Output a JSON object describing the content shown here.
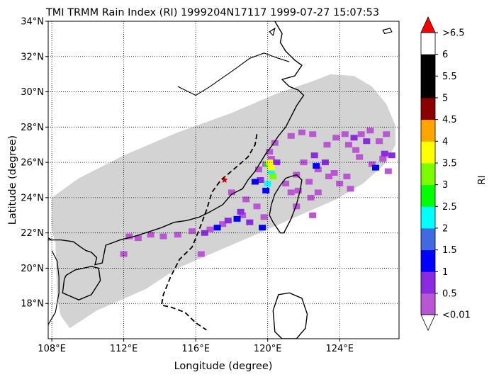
{
  "chart_data": {
    "type": "heatmap",
    "title": "TMI TRMM Rain Index (RI) 1999204N17117 1999-07-27 15:07:53",
    "xlabel": "Longitude (degree)",
    "ylabel": "Latitude (degree)",
    "xlim": [
      107.8,
      127.3
    ],
    "ylim": [
      16.0,
      34.0
    ],
    "grid": true,
    "x_ticks": [
      {
        "value": 108,
        "label": "108°E"
      },
      {
        "value": 112,
        "label": "112°E"
      },
      {
        "value": 116,
        "label": "116°E"
      },
      {
        "value": 120,
        "label": "120°E"
      },
      {
        "value": 124,
        "label": "124°E"
      }
    ],
    "y_ticks": [
      {
        "value": 18,
        "label": "18°N"
      },
      {
        "value": 20,
        "label": "20°N"
      },
      {
        "value": 22,
        "label": "22°N"
      },
      {
        "value": 24,
        "label": "24°N"
      },
      {
        "value": 26,
        "label": "26°N"
      },
      {
        "value": 28,
        "label": "28°N"
      },
      {
        "value": 30,
        "label": "30°N"
      },
      {
        "value": 32,
        "label": "32°N"
      },
      {
        "value": 34,
        "label": "34°N"
      }
    ],
    "swath_color": "#d3d3d3",
    "swath": [
      [
        108.0,
        24.0
      ],
      [
        109.5,
        25.1
      ],
      [
        112.0,
        26.4
      ],
      [
        115.0,
        27.7
      ],
      [
        118.0,
        28.8
      ],
      [
        120.5,
        29.9
      ],
      [
        122.5,
        30.6
      ],
      [
        123.5,
        31.0
      ],
      [
        124.8,
        30.9
      ],
      [
        125.8,
        30.3
      ],
      [
        126.6,
        29.3
      ],
      [
        127.1,
        28.1
      ],
      [
        127.1,
        27.0
      ],
      [
        126.5,
        25.9
      ],
      [
        125.3,
        24.8
      ],
      [
        123.8,
        23.9
      ],
      [
        122.0,
        23.1
      ],
      [
        120.0,
        22.2
      ],
      [
        117.5,
        21.1
      ],
      [
        115.0,
        20.0
      ],
      [
        113.2,
        18.8
      ],
      [
        110.5,
        17.6
      ],
      [
        109.0,
        16.6
      ],
      [
        108.5,
        17.3
      ],
      [
        108.3,
        18.3
      ],
      [
        108.2,
        21.4
      ],
      [
        108.0,
        22.2
      ]
    ],
    "storm_center": {
      "lon": 117.6,
      "lat": 25.0,
      "color": "#cc0000"
    },
    "track": [
      [
        119.4,
        27.6
      ],
      [
        119.3,
        27.0
      ],
      [
        118.9,
        26.3
      ],
      [
        118.1,
        25.6
      ],
      [
        117.4,
        25.0
      ],
      [
        116.9,
        24.3
      ],
      [
        116.6,
        23.3
      ],
      [
        116.2,
        22.2
      ],
      [
        115.8,
        21.2
      ],
      [
        115.1,
        20.5
      ],
      [
        114.6,
        19.5
      ],
      [
        114.2,
        18.5
      ],
      [
        114.1,
        17.9
      ],
      [
        114.6,
        17.8
      ],
      [
        115.4,
        17.5
      ],
      [
        116.0,
        16.9
      ],
      [
        116.6,
        16.5
      ]
    ],
    "rain_cells": [
      {
        "lon": 119.5,
        "lat": 25.6,
        "ri": 0.3
      },
      {
        "lon": 119.9,
        "lat": 25.9,
        "ri": 0.3
      },
      {
        "lon": 120.2,
        "lat": 26.2,
        "ri": 0.3
      },
      {
        "lon": 120.1,
        "lat": 26.6,
        "ri": 0.3
      },
      {
        "lon": 120.4,
        "lat": 27.1,
        "ri": 0.3
      },
      {
        "lon": 120.5,
        "lat": 26.0,
        "ri": 0.8
      },
      {
        "lon": 119.6,
        "lat": 25.0,
        "ri": 0.8
      },
      {
        "lon": 119.3,
        "lat": 24.9,
        "ri": 1.3
      },
      {
        "lon": 119.9,
        "lat": 24.4,
        "ri": 1.3
      },
      {
        "lon": 120.2,
        "lat": 25.5,
        "ri": 2.2
      },
      {
        "lon": 120.0,
        "lat": 24.8,
        "ri": 2.2
      },
      {
        "lon": 120.0,
        "lat": 25.9,
        "ri": 2.8
      },
      {
        "lon": 120.3,
        "lat": 25.2,
        "ri": 3.3
      },
      {
        "lon": 120.1,
        "lat": 26.0,
        "ri": 3.7
      },
      {
        "lon": 120.2,
        "lat": 25.7,
        "ri": 3.7
      },
      {
        "lon": 121.0,
        "lat": 24.8,
        "ri": 0.3
      },
      {
        "lon": 121.6,
        "lat": 25.3,
        "ri": 0.3
      },
      {
        "lon": 121.3,
        "lat": 24.3,
        "ri": 0.3
      },
      {
        "lon": 118.0,
        "lat": 24.3,
        "ri": 0.3
      },
      {
        "lon": 118.8,
        "lat": 23.9,
        "ri": 0.3
      },
      {
        "lon": 119.4,
        "lat": 23.5,
        "ri": 0.3
      },
      {
        "lon": 118.6,
        "lat": 23.0,
        "ri": 0.3
      },
      {
        "lon": 119.8,
        "lat": 22.9,
        "ri": 0.3
      },
      {
        "lon": 117.5,
        "lat": 22.5,
        "ri": 0.3
      },
      {
        "lon": 116.8,
        "lat": 22.2,
        "ri": 0.3
      },
      {
        "lon": 115.8,
        "lat": 22.1,
        "ri": 0.3
      },
      {
        "lon": 115.0,
        "lat": 21.9,
        "ri": 0.3
      },
      {
        "lon": 114.2,
        "lat": 21.8,
        "ri": 0.3
      },
      {
        "lon": 113.5,
        "lat": 21.9,
        "ri": 0.3
      },
      {
        "lon": 112.8,
        "lat": 21.7,
        "ri": 0.3
      },
      {
        "lon": 112.3,
        "lat": 21.8,
        "ri": 0.3
      },
      {
        "lon": 112.0,
        "lat": 20.8,
        "ri": 0.3
      },
      {
        "lon": 116.3,
        "lat": 20.8,
        "ri": 0.3
      },
      {
        "lon": 117.8,
        "lat": 22.7,
        "ri": 0.8
      },
      {
        "lon": 116.5,
        "lat": 22.0,
        "ri": 0.8
      },
      {
        "lon": 118.5,
        "lat": 23.2,
        "ri": 0.8
      },
      {
        "lon": 119.0,
        "lat": 22.6,
        "ri": 0.8
      },
      {
        "lon": 117.2,
        "lat": 22.3,
        "ri": 1.3
      },
      {
        "lon": 118.3,
        "lat": 22.8,
        "ri": 1.3
      },
      {
        "lon": 119.7,
        "lat": 22.3,
        "ri": 1.3
      },
      {
        "lon": 121.7,
        "lat": 24.4,
        "ri": 0.3
      },
      {
        "lon": 122.3,
        "lat": 24.9,
        "ri": 0.3
      },
      {
        "lon": 122.8,
        "lat": 24.3,
        "ri": 0.3
      },
      {
        "lon": 122.4,
        "lat": 24.0,
        "ri": 0.3
      },
      {
        "lon": 121.6,
        "lat": 23.5,
        "ri": 0.3
      },
      {
        "lon": 122.5,
        "lat": 23.0,
        "ri": 0.3
      },
      {
        "lon": 122.8,
        "lat": 25.6,
        "ri": 0.3
      },
      {
        "lon": 123.4,
        "lat": 25.2,
        "ri": 0.3
      },
      {
        "lon": 124.0,
        "lat": 24.8,
        "ri": 0.3
      },
      {
        "lon": 122.0,
        "lat": 26.0,
        "ri": 0.3
      },
      {
        "lon": 123.7,
        "lat": 25.4,
        "ri": 0.3
      },
      {
        "lon": 124.6,
        "lat": 24.5,
        "ri": 0.3
      },
      {
        "lon": 122.6,
        "lat": 26.4,
        "ri": 0.8
      },
      {
        "lon": 123.2,
        "lat": 26.0,
        "ri": 0.8
      },
      {
        "lon": 122.7,
        "lat": 25.8,
        "ri": 1.3
      },
      {
        "lon": 121.3,
        "lat": 27.5,
        "ri": 0.3
      },
      {
        "lon": 121.9,
        "lat": 27.7,
        "ri": 0.3
      },
      {
        "lon": 122.5,
        "lat": 27.6,
        "ri": 0.3
      },
      {
        "lon": 123.3,
        "lat": 27.0,
        "ri": 0.3
      },
      {
        "lon": 123.8,
        "lat": 27.4,
        "ri": 0.3
      },
      {
        "lon": 124.3,
        "lat": 27.6,
        "ri": 0.3
      },
      {
        "lon": 124.5,
        "lat": 27.0,
        "ri": 0.3
      },
      {
        "lon": 124.9,
        "lat": 26.7,
        "ri": 0.3
      },
      {
        "lon": 125.2,
        "lat": 27.6,
        "ri": 0.3
      },
      {
        "lon": 125.7,
        "lat": 27.8,
        "ri": 0.3
      },
      {
        "lon": 126.2,
        "lat": 27.2,
        "ri": 0.3
      },
      {
        "lon": 126.6,
        "lat": 27.6,
        "ri": 0.3
      },
      {
        "lon": 126.4,
        "lat": 26.2,
        "ri": 0.3
      },
      {
        "lon": 125.8,
        "lat": 25.9,
        "ri": 0.3
      },
      {
        "lon": 126.7,
        "lat": 25.5,
        "ri": 0.3
      },
      {
        "lon": 124.4,
        "lat": 25.2,
        "ri": 0.3
      },
      {
        "lon": 125.1,
        "lat": 26.3,
        "ri": 0.3
      },
      {
        "lon": 124.8,
        "lat": 27.4,
        "ri": 0.8
      },
      {
        "lon": 125.5,
        "lat": 27.2,
        "ri": 0.8
      },
      {
        "lon": 126.5,
        "lat": 26.5,
        "ri": 0.8
      },
      {
        "lon": 126.0,
        "lat": 25.7,
        "ri": 1.3
      },
      {
        "lon": 126.9,
        "lat": 26.4,
        "ri": 0.8
      }
    ],
    "colorbar": {
      "label": "RI",
      "colors": [
        "#ba55d3",
        "#8a2be2",
        "#0000ff",
        "#4169e1",
        "#00ffff",
        "#00ff00",
        "#7cfc00",
        "#ffff00",
        "#ffa500",
        "#8b0000",
        "#000000",
        "#000000"
      ],
      "over_color": "#ff0000",
      "under_color": "#ffffff",
      "tick_values": [
        0.01,
        0.5,
        1,
        1.5,
        2,
        2.5,
        3,
        3.5,
        4,
        4.5,
        5,
        5.5,
        6,
        6.5
      ],
      "tick_labels": [
        "<0.01",
        "0.5",
        "1",
        "1.5",
        "2",
        "2.5",
        "3",
        "3.5",
        "4",
        "4.5",
        "5",
        "5.5",
        "6",
        ">6.5"
      ]
    },
    "map": {
      "coastline": [
        [
          107.8,
          21.6
        ],
        [
          108.5,
          21.6
        ],
        [
          109.2,
          21.5
        ],
        [
          109.6,
          21.2
        ],
        [
          109.9,
          21.0
        ],
        [
          110.2,
          20.9
        ],
        [
          110.5,
          20.6
        ],
        [
          110.4,
          20.2
        ],
        [
          110.8,
          20.3
        ],
        [
          111.0,
          21.3
        ],
        [
          111.8,
          21.6
        ],
        [
          112.6,
          21.8
        ],
        [
          113.5,
          22.1
        ],
        [
          114.1,
          22.3
        ],
        [
          114.8,
          22.6
        ],
        [
          115.5,
          22.7
        ],
        [
          116.2,
          22.9
        ],
        [
          116.8,
          23.2
        ],
        [
          117.5,
          23.6
        ],
        [
          118.0,
          24.2
        ],
        [
          118.6,
          24.5
        ],
        [
          118.9,
          25.0
        ],
        [
          119.3,
          25.5
        ],
        [
          119.6,
          26.0
        ],
        [
          119.9,
          26.5
        ],
        [
          120.2,
          26.9
        ],
        [
          120.6,
          27.5
        ],
        [
          121.0,
          28.0
        ],
        [
          121.3,
          28.6
        ],
        [
          121.6,
          29.2
        ],
        [
          122.0,
          29.8
        ],
        [
          121.7,
          30.1
        ],
        [
          121.2,
          30.3
        ],
        [
          120.8,
          30.7
        ],
        [
          121.5,
          30.9
        ],
        [
          121.9,
          31.5
        ],
        [
          121.5,
          31.8
        ],
        [
          121.0,
          32.3
        ],
        [
          120.7,
          32.8
        ],
        [
          120.8,
          33.3
        ],
        [
          120.4,
          34.0
        ]
      ],
      "yangtze": [
        [
          115.0,
          30.3
        ],
        [
          116.0,
          29.8
        ],
        [
          116.8,
          30.3
        ],
        [
          117.5,
          30.8
        ],
        [
          118.2,
          31.3
        ],
        [
          119.0,
          31.9
        ],
        [
          119.8,
          32.2
        ],
        [
          120.6,
          31.9
        ],
        [
          121.2,
          31.7
        ]
      ],
      "taiwan": [
        [
          121.0,
          25.1
        ],
        [
          121.6,
          25.3
        ],
        [
          121.9,
          25.0
        ],
        [
          121.8,
          24.4
        ],
        [
          121.6,
          23.6
        ],
        [
          121.3,
          22.8
        ],
        [
          120.9,
          22.0
        ],
        [
          120.7,
          22.0
        ],
        [
          120.3,
          22.6
        ],
        [
          120.1,
          23.0
        ],
        [
          120.2,
          23.6
        ],
        [
          120.4,
          24.2
        ],
        [
          120.7,
          24.7
        ]
      ],
      "hainan": [
        [
          108.7,
          19.4
        ],
        [
          108.6,
          18.6
        ],
        [
          109.5,
          18.2
        ],
        [
          110.2,
          18.5
        ],
        [
          110.7,
          19.3
        ],
        [
          110.6,
          20.0
        ],
        [
          110.2,
          20.1
        ],
        [
          109.3,
          19.9
        ],
        [
          108.8,
          19.6
        ]
      ],
      "luzon": [
        [
          120.6,
          18.5
        ],
        [
          121.2,
          18.6
        ],
        [
          121.9,
          18.3
        ],
        [
          122.2,
          17.4
        ],
        [
          122.1,
          16.6
        ],
        [
          121.6,
          16.0
        ],
        [
          120.8,
          16.0
        ],
        [
          120.4,
          16.4
        ],
        [
          120.3,
          17.6
        ]
      ],
      "vietnam": [
        [
          107.8,
          16.8
        ],
        [
          108.2,
          17.5
        ],
        [
          108.4,
          18.6
        ],
        [
          108.4,
          19.5
        ],
        [
          108.3,
          20.4
        ],
        [
          108.0,
          21.0
        ]
      ],
      "china_vietnam_border": [
        [
          108.0,
          21.6
        ],
        [
          107.5,
          21.9
        ]
      ],
      "islands": [
        [
          [
            126.4,
            33.5
          ],
          [
            126.8,
            33.6
          ],
          [
            126.9,
            33.4
          ],
          [
            126.5,
            33.3
          ]
        ],
        [
          [
            120.1,
            33.4
          ],
          [
            120.4,
            33.6
          ],
          [
            120.3,
            33.2
          ]
        ]
      ]
    }
  }
}
